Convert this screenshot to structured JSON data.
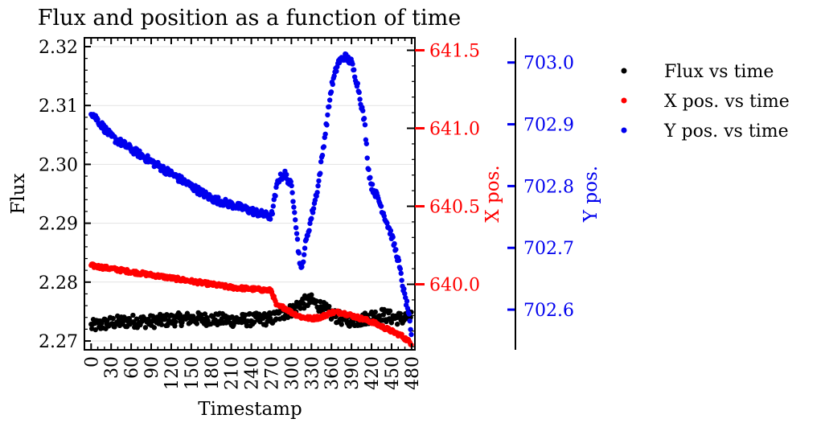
{
  "chart_data": {
    "type": "scatter",
    "title": "Flux and position as a function of time",
    "xlabel": "Timestamp",
    "ylabel": "Flux",
    "y2label": "X pos.",
    "y3label": "Y pos.",
    "xlim": [
      -10,
      485
    ],
    "ylim": [
      2.2685,
      2.3215
    ],
    "y2lim": [
      639.58,
      641.58
    ],
    "y3lim": [
      702.535,
      703.04
    ],
    "x_ticks": [
      0,
      30,
      60,
      90,
      120,
      150,
      180,
      210,
      240,
      270,
      300,
      330,
      360,
      390,
      420,
      450,
      480
    ],
    "y_ticks": [
      2.27,
      2.28,
      2.29,
      2.3,
      2.31,
      2.32
    ],
    "y2_ticks": [
      640.0,
      640.5,
      641.0,
      641.5
    ],
    "y3_ticks": [
      702.6,
      702.7,
      702.8,
      702.9,
      703.0
    ],
    "grid": true,
    "legend_position": "right",
    "colors": {
      "flux": "#000000",
      "xpos": "#ff0000",
      "ypos": "#0000ee",
      "grid": "#e2e2e2"
    },
    "series": [
      {
        "name": "Flux vs time",
        "axis": "left",
        "x": [
          0,
          30,
          60,
          90,
          120,
          150,
          180,
          210,
          240,
          270,
          285,
          300,
          315,
          330,
          345,
          360,
          375,
          390,
          405,
          420,
          435,
          450,
          465,
          480
        ],
        "y": [
          2.2725,
          2.2731,
          2.2734,
          2.2733,
          2.2736,
          2.2738,
          2.2737,
          2.2735,
          2.2736,
          2.2738,
          2.2745,
          2.2752,
          2.2765,
          2.2768,
          2.2758,
          2.2745,
          2.2738,
          2.2735,
          2.2736,
          2.2742,
          2.2745,
          2.274,
          2.2738,
          2.2742
        ]
      },
      {
        "name": "X pos. vs time",
        "axis": "right",
        "x": [
          0,
          30,
          60,
          90,
          120,
          150,
          180,
          210,
          240,
          270,
          278,
          290,
          300,
          315,
          330,
          345,
          360,
          375,
          390,
          405,
          420,
          435,
          450,
          465,
          480
        ],
        "y": [
          640.12,
          640.1,
          640.08,
          640.06,
          640.04,
          640.02,
          640.0,
          639.98,
          639.97,
          639.96,
          639.86,
          639.85,
          639.82,
          639.79,
          639.78,
          639.79,
          639.82,
          639.82,
          639.8,
          639.78,
          639.76,
          639.73,
          639.7,
          639.67,
          639.62
        ]
      },
      {
        "name": "Y pos. vs time",
        "axis": "far-right",
        "x": [
          0,
          15,
          30,
          45,
          60,
          90,
          120,
          150,
          180,
          210,
          240,
          270,
          280,
          290,
          300,
          305,
          310,
          315,
          320,
          330,
          340,
          350,
          355,
          360,
          370,
          380,
          390,
          400,
          405,
          410,
          415,
          420,
          430,
          440,
          450,
          460,
          465,
          470,
          475,
          480
        ],
        "y": [
          702.92,
          702.9,
          702.88,
          702.87,
          702.86,
          702.84,
          702.82,
          702.8,
          702.78,
          702.77,
          702.76,
          702.75,
          702.81,
          702.82,
          702.8,
          702.76,
          702.7,
          702.66,
          702.7,
          702.75,
          702.8,
          702.88,
          702.92,
          702.96,
          703.0,
          703.01,
          703.0,
          702.96,
          702.93,
          702.9,
          702.83,
          702.8,
          702.78,
          702.75,
          702.72,
          702.68,
          702.65,
          702.62,
          702.6,
          702.55
        ]
      }
    ]
  }
}
